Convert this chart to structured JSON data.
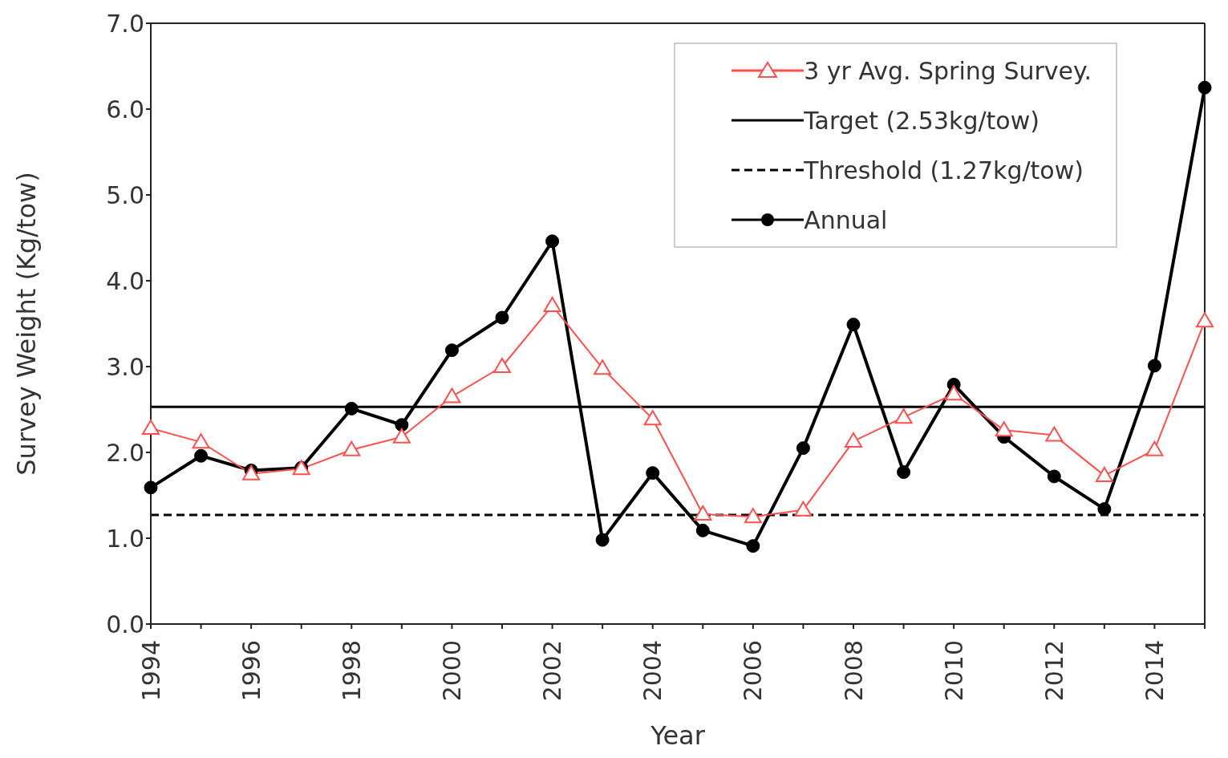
{
  "chart_data": {
    "type": "line",
    "xlabel": "Year",
    "ylabel": "Survey Weight (Kg/tow)",
    "categories": [
      "1994",
      null,
      "1996",
      null,
      "1998",
      null,
      "2000",
      null,
      "2002",
      null,
      "2004",
      null,
      "2006",
      null,
      "2008",
      null,
      "2010",
      null,
      "2012",
      null,
      "2014",
      null
    ],
    "series": [
      {
        "name": "3 yr Avg. Spring Survey.",
        "color": "#ff5050",
        "marker": "triangle",
        "values": [
          2.28,
          2.12,
          1.75,
          1.81,
          2.03,
          2.18,
          2.65,
          3.0,
          3.71,
          2.98,
          2.39,
          1.28,
          1.25,
          1.33,
          2.13,
          2.41,
          2.68,
          2.26,
          2.2,
          1.73,
          2.03,
          3.53
        ]
      },
      {
        "name": "Annual",
        "color": "#000000",
        "marker": "circle",
        "values": [
          1.59,
          1.96,
          1.79,
          1.82,
          2.51,
          2.32,
          3.19,
          3.57,
          4.46,
          0.98,
          1.76,
          1.09,
          0.91,
          2.05,
          3.49,
          1.77,
          2.79,
          2.18,
          1.72,
          1.34,
          3.01,
          6.25
        ]
      }
    ],
    "ref_lines": [
      {
        "axis": "y",
        "value": 2.53,
        "label": "Target (2.53kg/tow)",
        "color": "#000000",
        "line_style": "solid"
      },
      {
        "axis": "y",
        "value": 1.27,
        "label": "Threshold (1.27kg/tow)",
        "color": "#000000",
        "line_style": "dashed"
      }
    ],
    "ylim": [
      0,
      7
    ],
    "yticks": [
      {
        "value": 0,
        "label": "0.0"
      },
      {
        "value": 1,
        "label": "1.0"
      },
      {
        "value": 2,
        "label": "2.0"
      },
      {
        "value": 3,
        "label": "3.0"
      },
      {
        "value": 4,
        "label": "4.0"
      },
      {
        "value": 5,
        "label": "5.0"
      },
      {
        "value": 6,
        "label": "6.0"
      },
      {
        "value": 7,
        "label": "7.0"
      }
    ],
    "grid": false,
    "legend": "top right"
  }
}
